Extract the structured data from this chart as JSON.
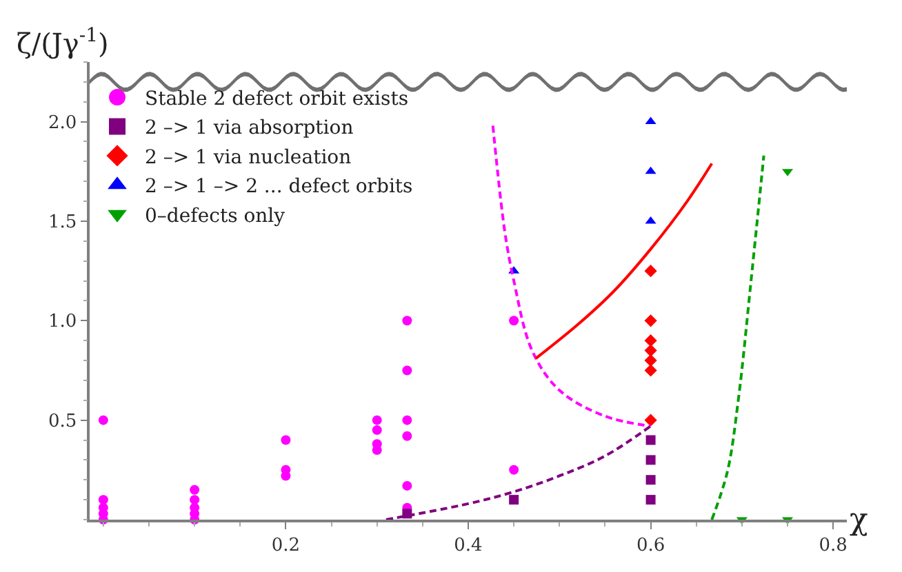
{
  "chart_data": {
    "type": "scatter",
    "xlabel": "χ",
    "ylabel": "ζ/(Jγ$^{-1}$)",
    "xlim": [
      -0.015,
      0.815
    ],
    "ylim": [
      0,
      2.3
    ],
    "xticks": [
      0.2,
      0.4,
      0.6,
      0.8
    ],
    "yticks": [
      0.5,
      {
        "value": 1.0,
        "label": "1.0"
      },
      1.5,
      {
        "value": 2.0,
        "label": "2.0"
      }
    ],
    "legend": "top left",
    "series": [
      {
        "name": "Stable 2 defect orbit exists",
        "color": "#ff00ff",
        "marker": "circle",
        "x": [
          0,
          0,
          0,
          0,
          0,
          0.1,
          0.1,
          0.1,
          0.1,
          0.1,
          0.2,
          0.2,
          0.2,
          0.3,
          0.3,
          0.3,
          0.3,
          0.333,
          0.333,
          0.333,
          0.333,
          0.333,
          0.333,
          0.45,
          0.45
        ],
        "values": [
          0,
          0.03,
          0.06,
          0.1,
          0.5,
          0,
          0.03,
          0.06,
          0.1,
          0.15,
          0.22,
          0.25,
          0.4,
          0.35,
          0.38,
          0.45,
          0.5,
          0.06,
          0.17,
          0.42,
          0.5,
          0.75,
          1.0,
          0.25,
          1.0
        ]
      },
      {
        "name": "2 –> 1 via absorption",
        "color": "#800080",
        "marker": "square",
        "x": [
          0.333,
          0.45,
          0.6,
          0.6,
          0.6,
          0.6
        ],
        "values": [
          0.03,
          0.1,
          0.1,
          0.2,
          0.3,
          0.4
        ]
      },
      {
        "name": "2 –> 1 via nucleation",
        "color": "#ff0000",
        "marker": "diamond",
        "x": [
          0.6,
          0.6,
          0.6,
          0.6,
          0.6,
          0.6,
          0.6
        ],
        "values": [
          0.5,
          0.75,
          0.8,
          0.85,
          0.9,
          1.0,
          1.25
        ]
      },
      {
        "name": "2 –> 1 –> 2 ... defect orbits",
        "color": "#0000ff",
        "marker": "triangle",
        "x": [
          0.45,
          0.6,
          0.6,
          0.6
        ],
        "values": [
          1.25,
          1.5,
          1.75,
          2.0
        ]
      },
      {
        "name": "0–defects only",
        "color": "#00a000",
        "marker": "triangle-down",
        "x": [
          0.7,
          0.75,
          0.75
        ],
        "values": [
          0,
          0,
          1.75
        ]
      },
      {
        "type": "line",
        "color": "#ff00ff",
        "line_style": "dashed",
        "x": [
          0.427,
          0.44,
          0.45,
          0.47,
          0.5,
          0.55,
          0.6
        ],
        "values": [
          1.98,
          1.45,
          1.2,
          0.85,
          0.65,
          0.52,
          0.47
        ]
      },
      {
        "type": "line",
        "color": "#800080",
        "line_style": "dashed",
        "x": [
          0.31,
          0.4,
          0.45,
          0.5,
          0.55,
          0.6
        ],
        "values": [
          0,
          0.08,
          0.14,
          0.22,
          0.32,
          0.47
        ]
      },
      {
        "type": "line",
        "color": "#ff0000",
        "line_style": "solid",
        "x": [
          0.474,
          0.52,
          0.56,
          0.6,
          0.64,
          0.667
        ],
        "values": [
          0.81,
          0.98,
          1.15,
          1.36,
          1.6,
          1.79
        ]
      },
      {
        "type": "line",
        "color": "#00a000",
        "line_style": "dashed",
        "x": [
          0.667,
          0.684,
          0.696,
          0.71,
          0.724
        ],
        "values": [
          0,
          0.24,
          0.6,
          1.2,
          1.83
        ]
      }
    ]
  }
}
